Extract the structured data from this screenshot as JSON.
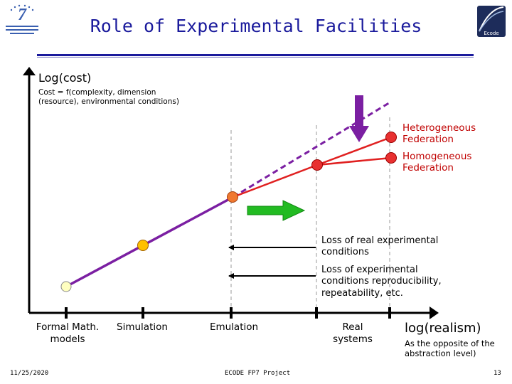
{
  "title": "Role of Experimental Facilities",
  "logos": {
    "left": "FP7 logo",
    "right": "Ecode",
    "left_icon": "fp7-logo-icon",
    "right_icon": "ecode-logo-icon"
  },
  "axes": {
    "y_label": "Log(cost)",
    "y_note_line1": "Cost = f(complexity, dimension",
    "y_note_line2": "(resource), environmental conditions)",
    "x_label": "log(realism)",
    "x_note_line1": "As the opposite of the",
    "x_note_line2": "abstraction level)"
  },
  "x_categories": [
    {
      "line1": "Formal Math.",
      "line2": "models"
    },
    {
      "line1": "Simulation",
      "line2": ""
    },
    {
      "line1": "Emulation",
      "line2": ""
    },
    {
      "line1": "Real",
      "line2": "systems"
    }
  ],
  "branches": {
    "heterogeneous_line1": "Heterogeneous",
    "heterogeneous_line2": "Federation",
    "homogeneous_line1": "Homogeneous",
    "homogeneous_line2": "Federation"
  },
  "annotations": {
    "loss1_line1": "Loss of real experimental",
    "loss1_line2": "conditions",
    "loss2_line1": "Loss of experimental",
    "loss2_line2": "conditions reproducibility,",
    "loss2_line3": "repeatability, etc."
  },
  "colors": {
    "title": "#1a1a9c",
    "main_line": "#7b1fa2",
    "federation_line": "#e02020",
    "point_formal": "#ffffc0",
    "point_simulation": "#ffc000",
    "point_emulation": "#f07830",
    "point_federation": "#e83030",
    "green_arrow": "#22bb22",
    "purple_arrow": "#7b1fa2"
  },
  "footer": {
    "date": "11/25/2020",
    "project": "ECODE FP7 Project",
    "page": "13"
  }
}
